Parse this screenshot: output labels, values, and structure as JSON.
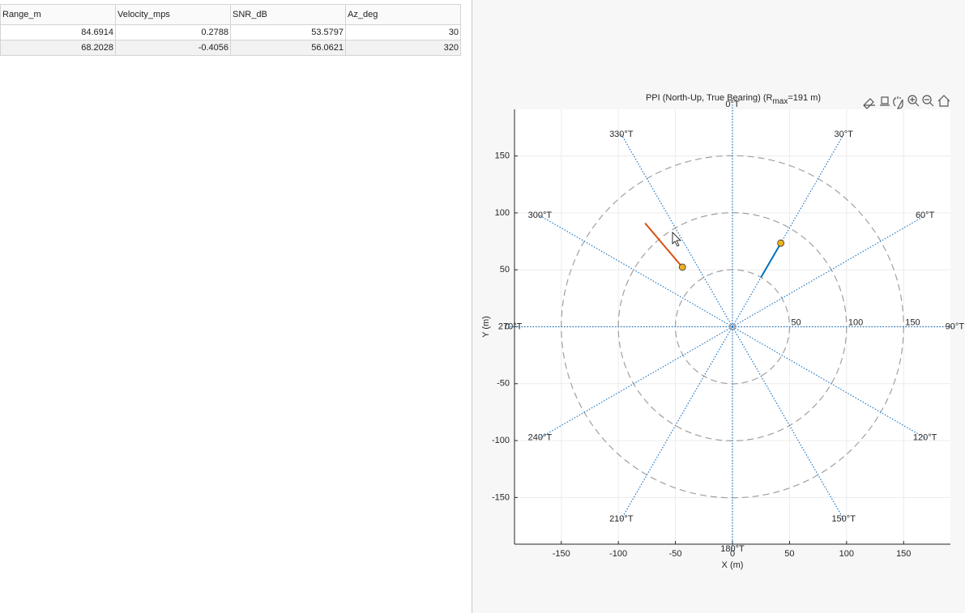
{
  "table": {
    "columns": [
      "Range_m",
      "Velocity_mps",
      "SNR_dB",
      "Az_deg"
    ],
    "rows": [
      [
        84.6914,
        0.2788,
        53.5797,
        30
      ],
      [
        68.2028,
        -0.4056,
        56.0621,
        320
      ]
    ]
  },
  "chart_data": {
    "type": "ppi",
    "title": {
      "text": "PPI   (North-Up, True Bearing)   (R",
      "subscript": "max",
      "suffix": "=191 m)"
    },
    "xlabel": "X (m)",
    "ylabel": "Y (m)",
    "xlim": [
      -191,
      191
    ],
    "ylim": [
      -191,
      191
    ],
    "xticks": [
      -150,
      -100,
      -50,
      0,
      50,
      100,
      150
    ],
    "yticks": [
      -150,
      -100,
      -50,
      0,
      50,
      100,
      150
    ],
    "grid": true,
    "rings": [
      50,
      100,
      150
    ],
    "bearings": [
      {
        "value": 0,
        "label": "0°T"
      },
      {
        "value": 30,
        "label": "30°T"
      },
      {
        "value": 60,
        "label": "60°T"
      },
      {
        "value": 90,
        "label": "90°T"
      },
      {
        "value": 120,
        "label": "120°T"
      },
      {
        "value": 150,
        "label": "150°T"
      },
      {
        "value": 180,
        "label": "180°T"
      },
      {
        "value": 210,
        "label": "210°T"
      },
      {
        "value": 240,
        "label": "240°T"
      },
      {
        "value": 270,
        "label": "270°T"
      },
      {
        "value": 300,
        "label": "300°T"
      },
      {
        "value": 330,
        "label": "330°T"
      }
    ],
    "marker_color": "#edb120",
    "trails": [
      {
        "color": "#0072bd",
        "x": [
          25,
          42.3
        ],
        "y": [
          43.4,
          73.3
        ]
      },
      {
        "color": "#d95319",
        "x": [
          -76.6,
          -43.8
        ],
        "y": [
          91,
          52.2
        ]
      }
    ]
  }
}
